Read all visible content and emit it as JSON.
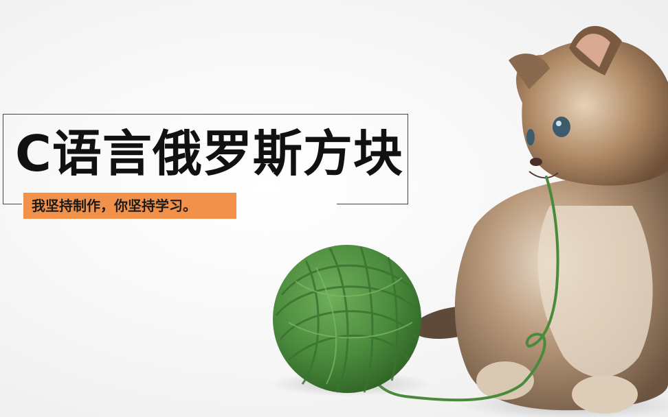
{
  "banner": {
    "title": "C语言俄罗斯方块",
    "tagline": "我坚持制作，你坚持学习。"
  },
  "colors": {
    "background": "#f3f3f3",
    "accent": "#f2924a",
    "yarn": "#4a8a3c",
    "kitten_fur": "#9a7a5c"
  },
  "illustration": {
    "objects": [
      "kitten",
      "green-yarn-ball",
      "yarn-strand"
    ]
  }
}
